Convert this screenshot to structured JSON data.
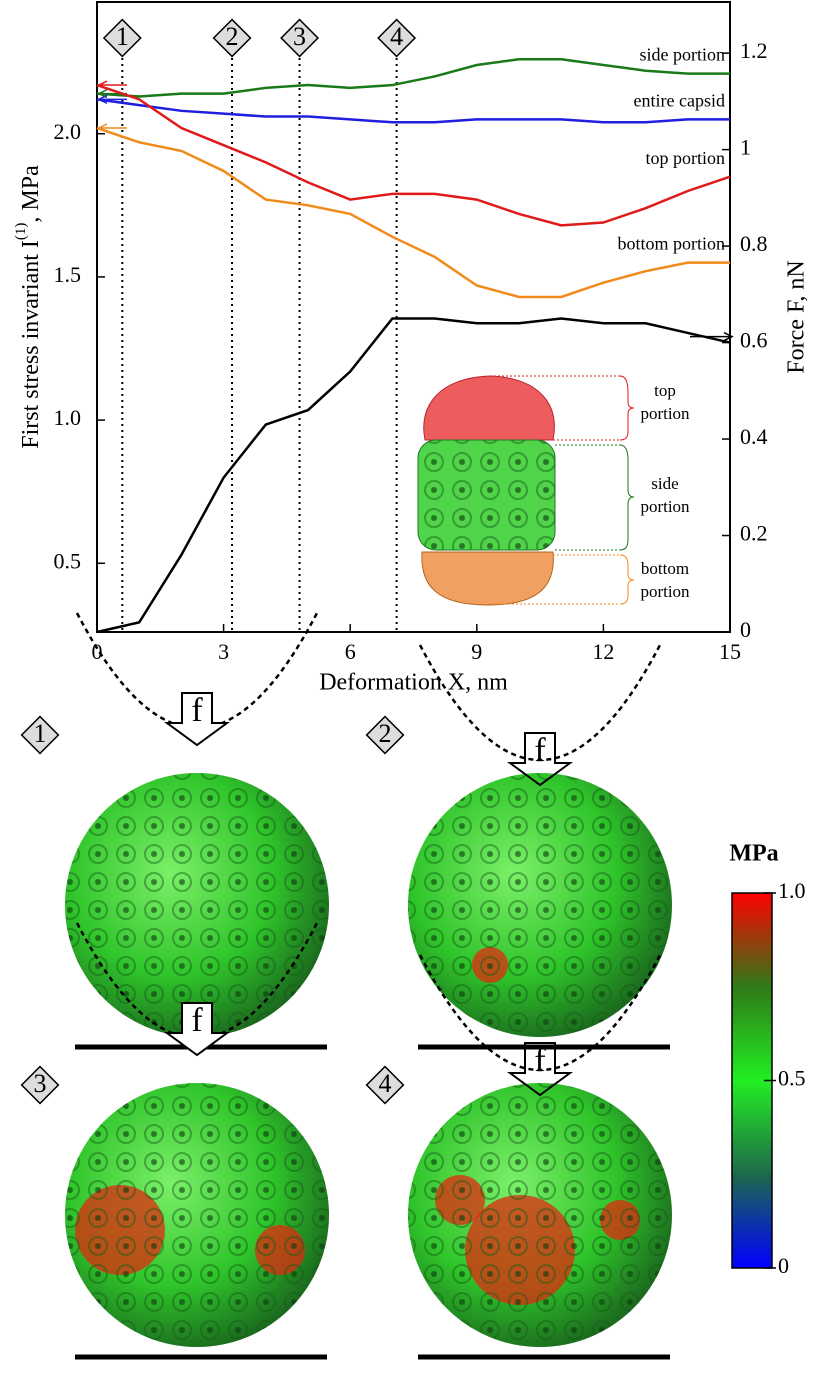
{
  "chart_data": {
    "type": "line",
    "x_label": "Deformation X, nm",
    "y_label": "First stress invariant I",
    "y_label_sup": "(1)",
    "y_label_suffix": ", MPa",
    "y2_label": "Force F, nN",
    "x": [
      0,
      1,
      2,
      3,
      4,
      5,
      6,
      7,
      8,
      9,
      10,
      11,
      12,
      13,
      14,
      15
    ],
    "series": [
      {
        "name": "side portion",
        "color": "#1a7a1a",
        "values": [
          2.14,
          2.13,
          2.14,
          2.14,
          2.16,
          2.17,
          2.16,
          2.17,
          2.2,
          2.24,
          2.26,
          2.26,
          2.24,
          2.22,
          2.21,
          2.21
        ]
      },
      {
        "name": "entire capsid",
        "color": "#1f1fe0",
        "values": [
          2.12,
          2.1,
          2.08,
          2.07,
          2.06,
          2.06,
          2.05,
          2.04,
          2.04,
          2.05,
          2.05,
          2.05,
          2.04,
          2.04,
          2.05,
          2.05
        ]
      },
      {
        "name": "top portion",
        "color": "#e01a1a",
        "values": [
          2.17,
          2.12,
          2.02,
          1.96,
          1.9,
          1.83,
          1.77,
          1.79,
          1.79,
          1.77,
          1.72,
          1.68,
          1.69,
          1.74,
          1.8,
          1.85
        ]
      },
      {
        "name": "bottom portion",
        "color": "#f08a1a",
        "values": [
          2.02,
          1.97,
          1.94,
          1.87,
          1.77,
          1.75,
          1.72,
          1.64,
          1.57,
          1.47,
          1.43,
          1.43,
          1.48,
          1.52,
          1.55,
          1.55
        ]
      },
      {
        "color": "#000000",
        "axis": "y2",
        "values": [
          0,
          0.02,
          0.16,
          0.32,
          0.43,
          0.46,
          0.54,
          0.65,
          0.65,
          0.64,
          0.64,
          0.65,
          0.64,
          0.64,
          0.62,
          0.6
        ]
      }
    ],
    "xlim": [
      0,
      15
    ],
    "xticks": [
      0,
      3,
      6,
      9,
      12,
      15
    ],
    "ylim": [
      0.26,
      2.46
    ],
    "yticks": [
      0.5,
      {
        "value": 1,
        "label": "1.0"
      },
      1.5,
      {
        "value": 2,
        "label": "2.0"
      }
    ],
    "y2lim": [
      0,
      1.306
    ],
    "y2ticks": [
      0,
      0.2,
      0.4,
      0.6,
      0.8,
      1,
      1.2
    ],
    "markers": [
      {
        "x": 0.6,
        "label": "1"
      },
      {
        "x": 3.2,
        "label": "2"
      },
      {
        "x": 4.8,
        "label": "3"
      },
      {
        "x": 7.1,
        "label": "4"
      }
    ],
    "inset_labels": [
      [
        "top",
        "portion"
      ],
      [
        "side",
        "portion"
      ],
      [
        "bottom",
        "portion"
      ]
    ]
  },
  "panels": {
    "labels": [
      "1",
      "2",
      "3",
      "4"
    ],
    "force_label": "f",
    "colorbar": {
      "title": "MPa",
      "lim": [
        0,
        1
      ],
      "ticks": [
        {
          "value": 1,
          "label": "1.0"
        },
        0.5,
        0
      ]
    }
  }
}
